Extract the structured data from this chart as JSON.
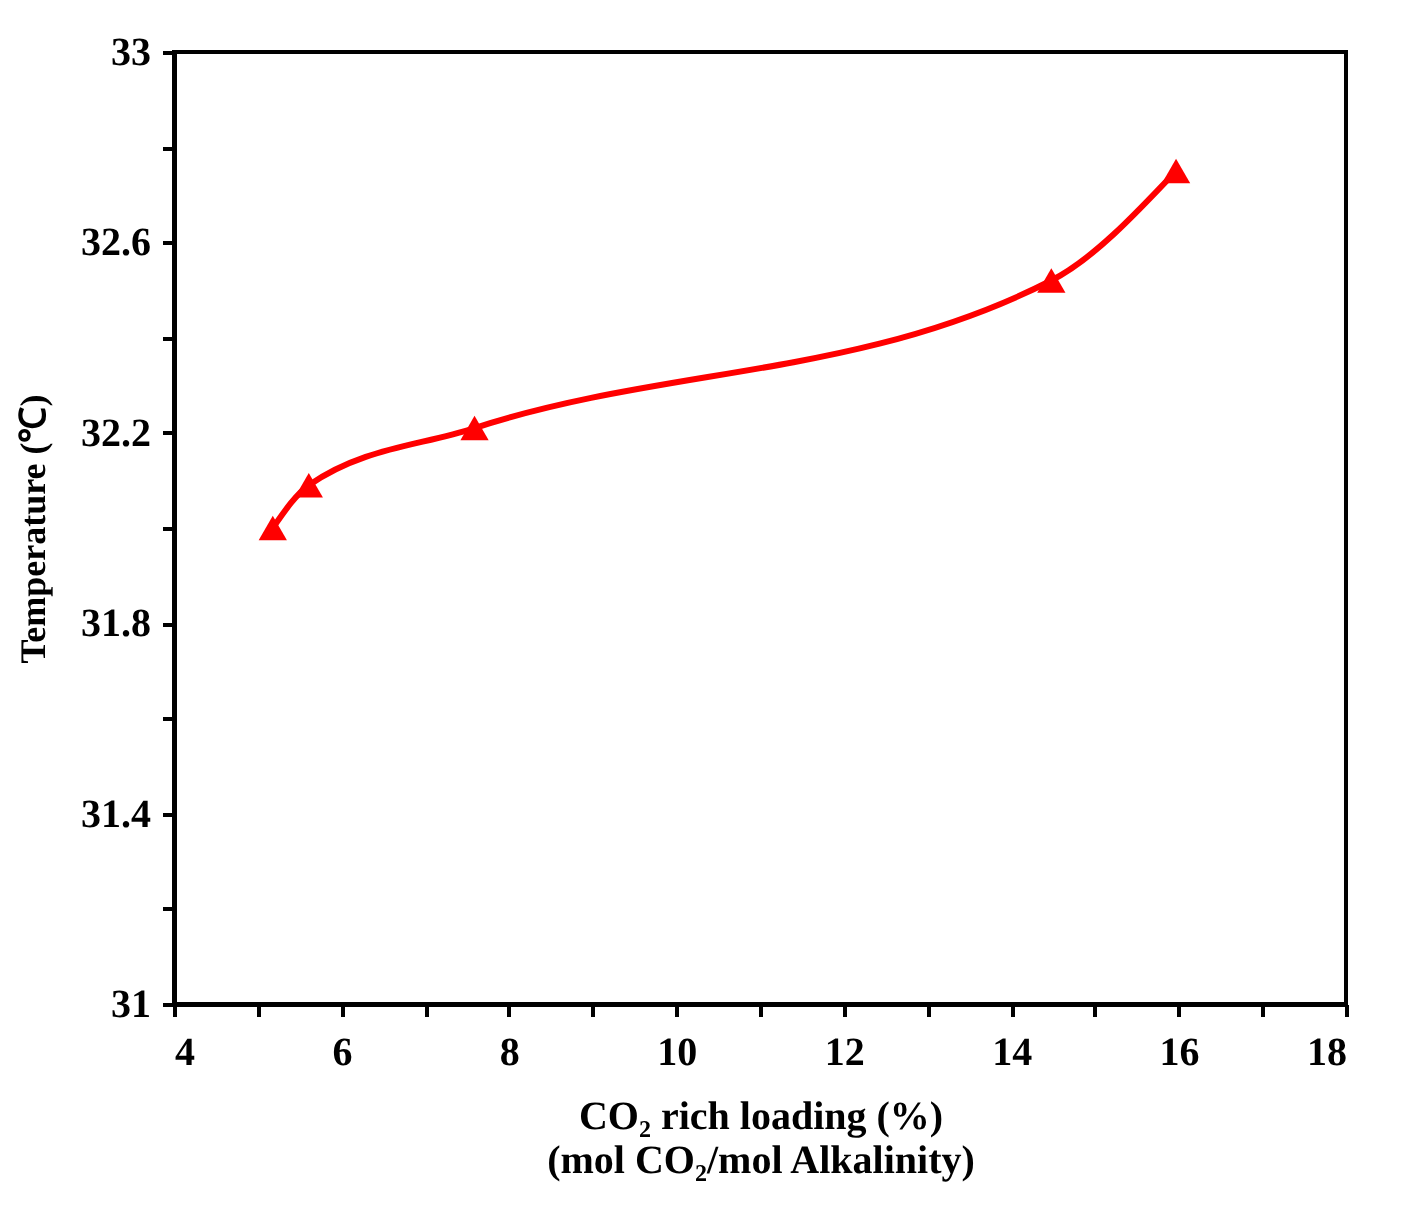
{
  "chart_data": {
    "type": "line",
    "xlabel": "CO₂ rich loading (%)\n(mol CO₂/mol Alkalinity)",
    "ylabel": "Temperature (℃)",
    "x": [
      5.18,
      5.61,
      7.59,
      14.48,
      15.97
    ],
    "series": [
      {
        "color": "#ff0000",
        "values": [
          32.0,
          32.09,
          32.21,
          32.52,
          32.75
        ]
      }
    ],
    "marker": "triangle",
    "line_style": "solid",
    "grid": false,
    "xlim": [
      4,
      18
    ],
    "ylim": [
      31,
      33
    ],
    "xticks": [
      4,
      {
        "value": 5,
        "label": null
      },
      6,
      {
        "value": 7,
        "label": null
      },
      8,
      {
        "value": 9,
        "label": null
      },
      10,
      {
        "value": 11,
        "label": null
      },
      12,
      {
        "value": 13,
        "label": null
      },
      14,
      {
        "value": 15,
        "label": null
      },
      16,
      {
        "value": 17,
        "label": null
      },
      18
    ],
    "yticks": [
      31,
      {
        "value": 31.2,
        "label": null
      },
      31.4,
      {
        "value": 31.6,
        "label": null
      },
      31.8,
      {
        "value": 32.0,
        "label": null
      },
      32.2,
      {
        "value": 32.4,
        "label": null
      },
      32.6,
      {
        "value": 32.8,
        "label": null
      },
      33
    ]
  }
}
